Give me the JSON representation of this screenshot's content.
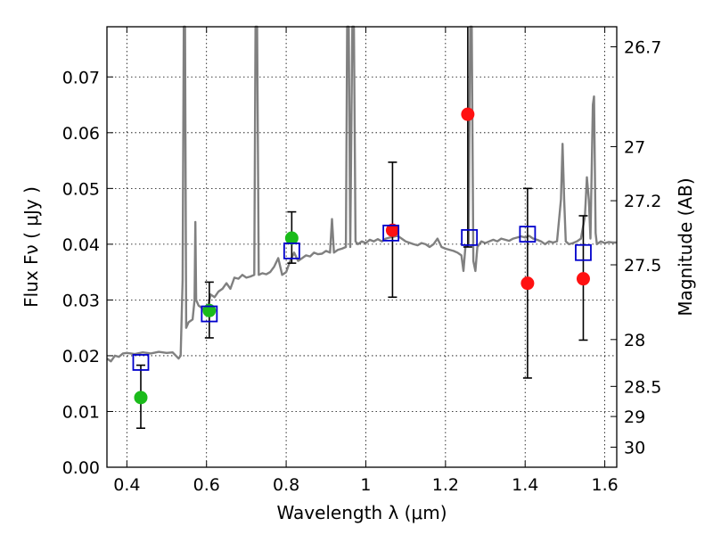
{
  "chart_data": {
    "type": "scatter",
    "xlabel": "Wavelength  λ (μm)",
    "ylabel": "Flux  Fν  ( μJy )",
    "ylabel_right": "Magnitude (AB)",
    "xlim": [
      0.35,
      1.63
    ],
    "ylim": [
      0.0,
      0.079
    ],
    "grid": true,
    "x_ticks": [
      {
        "value": 0.4,
        "label": "0.4"
      },
      {
        "value": 0.6,
        "label": "0.6"
      },
      {
        "value": 0.8,
        "label": "0.8"
      },
      {
        "value": 1.0,
        "label": "1"
      },
      {
        "value": 1.2,
        "label": "1.2"
      },
      {
        "value": 1.4,
        "label": "1.4"
      },
      {
        "value": 1.6,
        "label": "1.6"
      }
    ],
    "y_ticks": [
      {
        "value": 0.0,
        "label": "0.00"
      },
      {
        "value": 0.01,
        "label": "0.01"
      },
      {
        "value": 0.02,
        "label": "0.02"
      },
      {
        "value": 0.03,
        "label": "0.03"
      },
      {
        "value": 0.04,
        "label": "0.04"
      },
      {
        "value": 0.05,
        "label": "0.05"
      },
      {
        "value": 0.06,
        "label": "0.06"
      },
      {
        "value": 0.07,
        "label": "0.07"
      }
    ],
    "right_ticks": [
      {
        "label": "26.7",
        "flux": 0.0754
      },
      {
        "label": "27",
        "flux": 0.0575
      },
      {
        "label": "27.2",
        "flux": 0.0478
      },
      {
        "label": "27.5",
        "flux": 0.0363
      },
      {
        "label": "28",
        "flux": 0.0229
      },
      {
        "label": "28.5",
        "flux": 0.0145
      },
      {
        "label": "29",
        "flux": 0.0091
      },
      {
        "label": "30",
        "flux": 0.0036
      }
    ],
    "spectrum": {
      "color": "#808080",
      "points": [
        [
          0.35,
          0.0195
        ],
        [
          0.36,
          0.019
        ],
        [
          0.37,
          0.02
        ],
        [
          0.38,
          0.0198
        ],
        [
          0.39,
          0.0204
        ],
        [
          0.4,
          0.0205
        ],
        [
          0.42,
          0.0203
        ],
        [
          0.44,
          0.0206
        ],
        [
          0.46,
          0.0204
        ],
        [
          0.48,
          0.0207
        ],
        [
          0.5,
          0.0205
        ],
        [
          0.515,
          0.0206
        ],
        [
          0.53,
          0.0195
        ],
        [
          0.535,
          0.02
        ],
        [
          0.54,
          0.0335
        ],
        [
          0.543,
          0.079
        ],
        [
          0.546,
          0.079
        ],
        [
          0.549,
          0.025
        ],
        [
          0.555,
          0.026
        ],
        [
          0.565,
          0.0265
        ],
        [
          0.57,
          0.03
        ],
        [
          0.572,
          0.044
        ],
        [
          0.574,
          0.03
        ],
        [
          0.58,
          0.029
        ],
        [
          0.59,
          0.0285
        ],
        [
          0.6,
          0.0275
        ],
        [
          0.61,
          0.031
        ],
        [
          0.62,
          0.0305
        ],
        [
          0.63,
          0.0315
        ],
        [
          0.64,
          0.032
        ],
        [
          0.65,
          0.033
        ],
        [
          0.66,
          0.032
        ],
        [
          0.67,
          0.034
        ],
        [
          0.68,
          0.0338
        ],
        [
          0.69,
          0.0345
        ],
        [
          0.7,
          0.034
        ],
        [
          0.71,
          0.0342
        ],
        [
          0.72,
          0.0345
        ],
        [
          0.723,
          0.079
        ],
        [
          0.727,
          0.079
        ],
        [
          0.731,
          0.0345
        ],
        [
          0.74,
          0.0348
        ],
        [
          0.75,
          0.0346
        ],
        [
          0.76,
          0.035
        ],
        [
          0.77,
          0.036
        ],
        [
          0.78,
          0.0375
        ],
        [
          0.79,
          0.0345
        ],
        [
          0.8,
          0.035
        ],
        [
          0.81,
          0.037
        ],
        [
          0.82,
          0.0385
        ],
        [
          0.83,
          0.037
        ],
        [
          0.84,
          0.0375
        ],
        [
          0.85,
          0.038
        ],
        [
          0.86,
          0.0378
        ],
        [
          0.87,
          0.0385
        ],
        [
          0.88,
          0.0382
        ],
        [
          0.89,
          0.0383
        ],
        [
          0.9,
          0.0388
        ],
        [
          0.91,
          0.0385
        ],
        [
          0.915,
          0.0445
        ],
        [
          0.92,
          0.0385
        ],
        [
          0.93,
          0.039
        ],
        [
          0.94,
          0.0392
        ],
        [
          0.95,
          0.0395
        ],
        [
          0.953,
          0.079
        ],
        [
          0.957,
          0.079
        ],
        [
          0.961,
          0.0395
        ],
        [
          0.966,
          0.079
        ],
        [
          0.97,
          0.079
        ],
        [
          0.974,
          0.0405
        ],
        [
          0.98,
          0.04
        ],
        [
          0.99,
          0.0405
        ],
        [
          1.0,
          0.0402
        ],
        [
          1.01,
          0.0408
        ],
        [
          1.02,
          0.0405
        ],
        [
          1.03,
          0.0409
        ],
        [
          1.04,
          0.0405
        ],
        [
          1.05,
          0.041
        ],
        [
          1.06,
          0.0412
        ],
        [
          1.08,
          0.0415
        ],
        [
          1.09,
          0.041
        ],
        [
          1.1,
          0.0405
        ],
        [
          1.12,
          0.04
        ],
        [
          1.13,
          0.0398
        ],
        [
          1.14,
          0.0402
        ],
        [
          1.15,
          0.04
        ],
        [
          1.16,
          0.0395
        ],
        [
          1.17,
          0.04
        ],
        [
          1.18,
          0.041
        ],
        [
          1.19,
          0.0395
        ],
        [
          1.2,
          0.0392
        ],
        [
          1.21,
          0.039
        ],
        [
          1.22,
          0.0388
        ],
        [
          1.23,
          0.0385
        ],
        [
          1.24,
          0.038
        ],
        [
          1.245,
          0.0352
        ],
        [
          1.25,
          0.0395
        ],
        [
          1.258,
          0.04
        ],
        [
          1.262,
          0.079
        ],
        [
          1.266,
          0.079
        ],
        [
          1.27,
          0.037
        ],
        [
          1.275,
          0.0352
        ],
        [
          1.28,
          0.0395
        ],
        [
          1.29,
          0.0405
        ],
        [
          1.3,
          0.0402
        ],
        [
          1.31,
          0.0405
        ],
        [
          1.32,
          0.0408
        ],
        [
          1.33,
          0.0405
        ],
        [
          1.34,
          0.041
        ],
        [
          1.35,
          0.0408
        ],
        [
          1.36,
          0.0406
        ],
        [
          1.37,
          0.041
        ],
        [
          1.38,
          0.0412
        ],
        [
          1.39,
          0.0414
        ],
        [
          1.4,
          0.0412
        ],
        [
          1.41,
          0.0415
        ],
        [
          1.42,
          0.041
        ],
        [
          1.43,
          0.0408
        ],
        [
          1.44,
          0.0405
        ],
        [
          1.45,
          0.04
        ],
        [
          1.46,
          0.0405
        ],
        [
          1.47,
          0.0403
        ],
        [
          1.48,
          0.0405
        ],
        [
          1.49,
          0.048
        ],
        [
          1.494,
          0.058
        ],
        [
          1.498,
          0.048
        ],
        [
          1.502,
          0.0405
        ],
        [
          1.51,
          0.04
        ],
        [
          1.52,
          0.0402
        ],
        [
          1.53,
          0.0405
        ],
        [
          1.54,
          0.041
        ],
        [
          1.55,
          0.045
        ],
        [
          1.555,
          0.052
        ],
        [
          1.56,
          0.048
        ],
        [
          1.564,
          0.041
        ],
        [
          1.57,
          0.065
        ],
        [
          1.573,
          0.0665
        ],
        [
          1.577,
          0.042
        ],
        [
          1.58,
          0.04
        ],
        [
          1.59,
          0.0405
        ],
        [
          1.6,
          0.0402
        ],
        [
          1.61,
          0.0404
        ],
        [
          1.62,
          0.0403
        ],
        [
          1.63,
          0.0403
        ]
      ]
    },
    "series": [
      {
        "marker": "circle",
        "color": "#1bbb1b",
        "points": [
          {
            "x": 0.435,
            "y": 0.0125,
            "err_lo": 0.007,
            "err_hi": 0.0183
          },
          {
            "x": 0.607,
            "y": 0.0281,
            "err_lo": 0.0232,
            "err_hi": 0.0332
          },
          {
            "x": 0.814,
            "y": 0.0411,
            "err_lo": 0.0366,
            "err_hi": 0.0458
          }
        ]
      },
      {
        "marker": "circle",
        "color": "#ff1111",
        "points": [
          {
            "x": 1.067,
            "y": 0.0425,
            "err_lo": 0.0305,
            "err_hi": 0.0547
          },
          {
            "x": 1.256,
            "y": 0.0633,
            "err_lo": 0.0395,
            "err_hi": 0.079
          },
          {
            "x": 1.406,
            "y": 0.033,
            "err_lo": 0.016,
            "err_hi": 0.05
          },
          {
            "x": 1.546,
            "y": 0.0338,
            "err_lo": 0.0228,
            "err_hi": 0.0451
          }
        ]
      },
      {
        "marker": "open-square",
        "color": "#0000cc",
        "points": [
          {
            "x": 0.435,
            "y": 0.0188
          },
          {
            "x": 0.607,
            "y": 0.0275
          },
          {
            "x": 0.814,
            "y": 0.0388
          },
          {
            "x": 1.063,
            "y": 0.042
          },
          {
            "x": 1.26,
            "y": 0.0412
          },
          {
            "x": 1.406,
            "y": 0.0418
          },
          {
            "x": 1.546,
            "y": 0.0385
          }
        ]
      }
    ]
  }
}
